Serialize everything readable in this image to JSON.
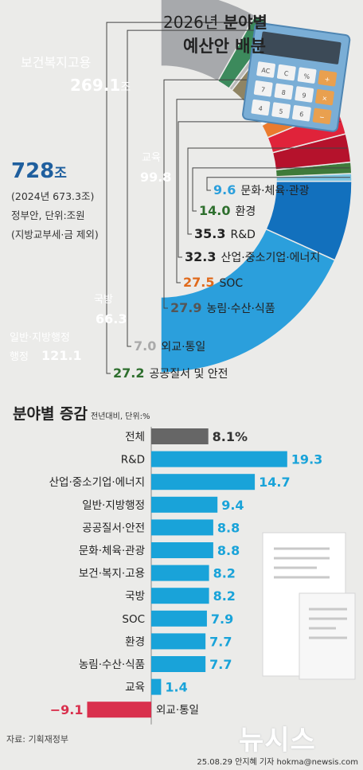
{
  "header": {
    "title_year": "2026년",
    "title_bold": "분야별",
    "title_line2": "예산안 배분"
  },
  "summary": {
    "total_value": "728",
    "total_unit": "조",
    "prev_year": "(2024년 673.3조)",
    "note_unit": "정부안, 단위:조원",
    "note_excl": "(지방교부세·금 제외)"
  },
  "chart_data": [
    {
      "type": "pie",
      "title": "2026년 분야별 예산안 배분",
      "unit": "조원",
      "total": 728,
      "slices": [
        {
          "label": "보건복지고용",
          "value": 269.1,
          "value_label": "269.1",
          "unit_label": "조",
          "color": "#2b9fdc"
        },
        {
          "label": "교육",
          "value": 99.8,
          "value_label": "99.8",
          "color": "#1270bd"
        },
        {
          "label": "문화·체육·관광",
          "value": 9.6,
          "value_label": "9.6",
          "color": "#7cc4e2"
        },
        {
          "label": "환경",
          "value": 14.0,
          "value_label": "14.0",
          "color": "#3f7a3a"
        },
        {
          "label": "R&D",
          "value": 35.3,
          "value_label": "35.3",
          "color": "#b5122c"
        },
        {
          "label": "산업·중소기업·에너지",
          "value": 32.3,
          "value_label": "32.3",
          "color": "#e0233a"
        },
        {
          "label": "SOC",
          "value": 27.5,
          "value_label": "27.5",
          "color": "#ea7b2e"
        },
        {
          "label": "농림·수산·식품",
          "value": 27.9,
          "value_label": "27.9",
          "color": "#ffffff"
        },
        {
          "label": "국방",
          "value": 66.3,
          "value_label": "66.3",
          "color": "#8f8463"
        },
        {
          "label": "외교·통일",
          "value": 7.0,
          "value_label": "7.0",
          "color": "#b9b9b9"
        },
        {
          "label": "공공질서 및 안전",
          "value": 27.2,
          "value_label": "27.2",
          "color": "#3c8a5c"
        },
        {
          "label": "일반·지방행정",
          "value": 121.1,
          "value_label": "121.1",
          "color": "#a7a9ac"
        }
      ]
    },
    {
      "type": "bar",
      "orientation": "horizontal",
      "title": "분야별 증감",
      "subtitle": "전년대비, 단위:%",
      "categories": [
        "전체",
        "R&D",
        "산업·중소기업·에너지",
        "일반·지방행정",
        "공공질서·안전",
        "문화·체육·관광",
        "보건·복지·고용",
        "국방",
        "SOC",
        "환경",
        "농림·수산·식품",
        "교육",
        "외교·통일"
      ],
      "values": [
        8.1,
        19.3,
        14.7,
        9.4,
        8.8,
        8.8,
        8.2,
        8.2,
        7.9,
        7.7,
        7.7,
        1.4,
        -9.1
      ],
      "labels": [
        "8.1%",
        "19.3",
        "14.7",
        "9.4",
        "8.8",
        "8.8",
        "8.2",
        "8.2",
        "7.9",
        "7.7",
        "7.7",
        "1.4",
        "−9.1"
      ],
      "colors": {
        "total": "#666666",
        "positive": "#19a3d9",
        "negative": "#d9304d"
      }
    }
  ],
  "footer": {
    "source": "자료: 기획재정부",
    "credit": "25.08.29 안지혜 기자 hokma@newsis.com",
    "logo": "뉴시스"
  },
  "calculator": {
    "keys": [
      "AC",
      "C",
      "%",
      "+",
      "7",
      "8",
      "9",
      "×",
      "4",
      "5",
      "6",
      "−"
    ]
  }
}
